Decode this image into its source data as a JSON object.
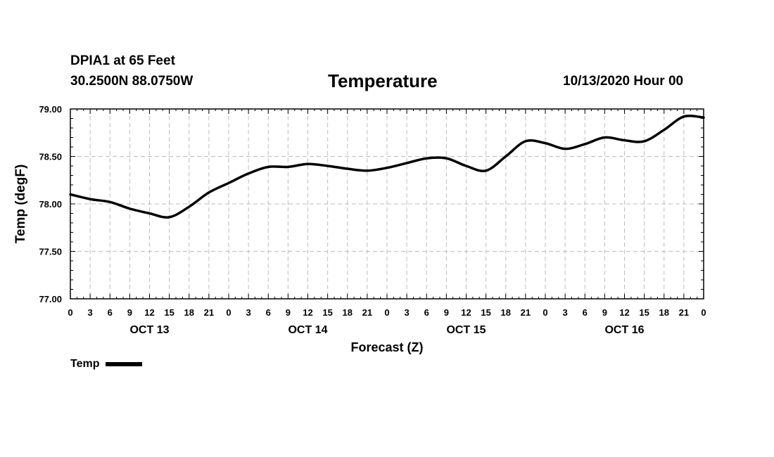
{
  "header": {
    "station": "DPIA1 at 65 Feet",
    "coords": "30.2500N 88.0750W",
    "title": "Temperature",
    "issued": "10/13/2020 Hour 00"
  },
  "legend": {
    "label": "Temp"
  },
  "chart_data": {
    "type": "line",
    "title": "Temperature",
    "xlabel": "Forecast (Z)",
    "ylabel": "Temp (degF)",
    "x_unit": "forecast hour",
    "xlim": [
      0,
      96
    ],
    "ylim": [
      77.0,
      79.0
    ],
    "y_ticks": [
      "77.00",
      "77.50",
      "78.00",
      "78.50",
      "79.00"
    ],
    "x_tick_labels": [
      "0",
      "3",
      "6",
      "9",
      "12",
      "15",
      "18",
      "21",
      "0",
      "3",
      "6",
      "9",
      "12",
      "15",
      "18",
      "21",
      "0",
      "3",
      "6",
      "9",
      "12",
      "15",
      "18",
      "21",
      "0",
      "3",
      "6",
      "9",
      "12",
      "15",
      "18",
      "21",
      "0"
    ],
    "date_labels": [
      {
        "label": "OCT 13",
        "hour": 12
      },
      {
        "label": "OCT 14",
        "hour": 36
      },
      {
        "label": "OCT 15",
        "hour": 60
      },
      {
        "label": "OCT 16",
        "hour": 84
      }
    ],
    "grid": true,
    "legend_position": "bottom-left",
    "series": [
      {
        "name": "Temp",
        "color": "#000000",
        "x": [
          0,
          3,
          6,
          9,
          12,
          15,
          18,
          21,
          24,
          27,
          30,
          33,
          36,
          39,
          42,
          45,
          48,
          51,
          54,
          57,
          60,
          63,
          66,
          69,
          72,
          75,
          78,
          81,
          84,
          87,
          90,
          93,
          96
        ],
        "values": [
          78.1,
          78.05,
          78.02,
          77.95,
          77.9,
          77.86,
          77.97,
          78.12,
          78.22,
          78.32,
          78.39,
          78.39,
          78.42,
          78.4,
          78.37,
          78.35,
          78.38,
          78.43,
          78.48,
          78.48,
          78.4,
          78.35,
          78.5,
          78.66,
          78.64,
          78.58,
          78.63,
          78.7,
          78.67,
          78.66,
          78.78,
          78.92,
          78.91
        ]
      }
    ]
  }
}
